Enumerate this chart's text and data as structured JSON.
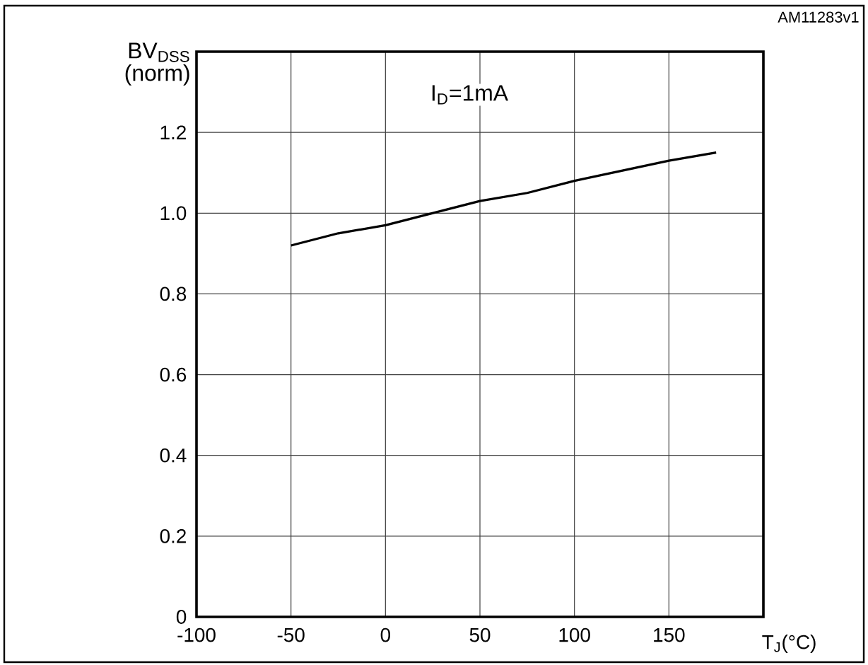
{
  "chart_data": {
    "type": "line",
    "xlabel": "T$_{J}$(°C)",
    "ylabel": "BV$_{DSS}$ (norm)",
    "annotations": [
      "I$_{D}$=1mA",
      "AM11283v1"
    ],
    "x": [
      -50,
      -25,
      0,
      25,
      50,
      75,
      100,
      125,
      150,
      175
    ],
    "series": [
      {
        "color": "#000000",
        "values": [
          0.92,
          0.95,
          0.97,
          1.0,
          1.03,
          1.05,
          1.08,
          1.105,
          1.13,
          1.15
        ]
      }
    ],
    "xlim": [
      -100,
      200
    ],
    "ylim": [
      0,
      1.4
    ],
    "xticks": [
      -100,
      -50,
      0,
      50,
      100,
      150
    ],
    "yticks": [
      0,
      0.2,
      0.4,
      0.6,
      0.8,
      {
        "value": 1,
        "label": "1.0"
      },
      1.2
    ],
    "grid": true,
    "marker": "none",
    "line_style": "solid"
  }
}
